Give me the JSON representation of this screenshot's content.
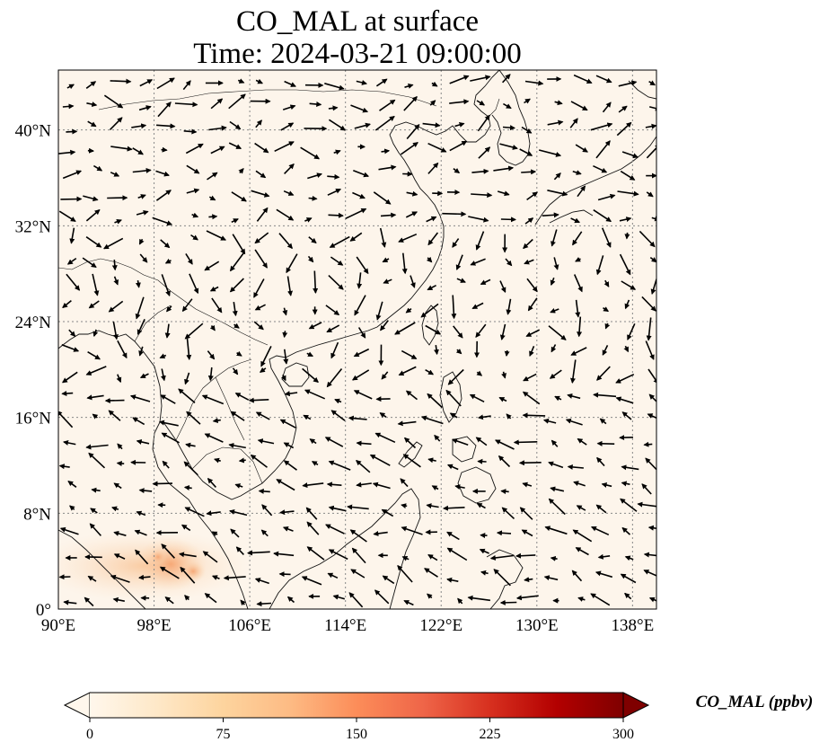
{
  "title_line1": "CO_MAL at surface",
  "title_line2": "Time: 2024-03-21 09:00:00",
  "map": {
    "lon_range": [
      90,
      140
    ],
    "lat_range": [
      0,
      45
    ],
    "lon_ticks": [
      "90°E",
      "98°E",
      "106°E",
      "114°E",
      "122°E",
      "130°E",
      "138°E"
    ],
    "lon_tick_values": [
      90,
      98,
      106,
      114,
      122,
      130,
      138
    ],
    "lat_ticks": [
      "0°",
      "8°N",
      "16°N",
      "24°N",
      "32°N",
      "40°N"
    ],
    "lat_tick_values": [
      0,
      8,
      16,
      24,
      32,
      40
    ],
    "background_color": "#fdf5eb",
    "hotspot_color": "#f4a070",
    "gridlines": "dotted"
  },
  "colorbar": {
    "label": "CO_MAL (ppbv)",
    "ticks": [
      "0",
      "75",
      "150",
      "225",
      "300"
    ],
    "tick_values": [
      0,
      75,
      150,
      225,
      300
    ],
    "range": [
      0,
      300
    ],
    "extend": "both",
    "colormap": "OrRd",
    "colors": [
      "#fff7ec",
      "#fee8c8",
      "#fdd49e",
      "#fdbb84",
      "#fc8d59",
      "#ef6548",
      "#d7301f",
      "#b30000",
      "#7f0000"
    ]
  }
}
